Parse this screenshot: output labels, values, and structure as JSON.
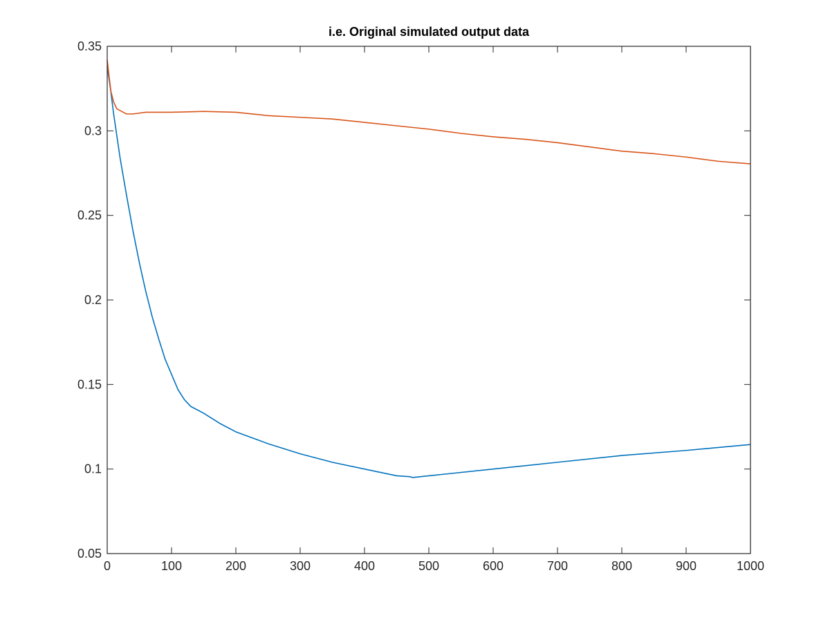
{
  "chart_data": {
    "type": "line",
    "title": "i.e. Original simulated output data",
    "xlabel": "",
    "ylabel": "",
    "xlim": [
      0,
      1000
    ],
    "ylim": [
      0.05,
      0.35
    ],
    "xticks": [
      0,
      100,
      200,
      300,
      400,
      500,
      600,
      700,
      800,
      900,
      1000
    ],
    "xtick_labels": [
      "0",
      "100",
      "200",
      "300",
      "400",
      "500",
      "600",
      "700",
      "800",
      "900",
      "1000"
    ],
    "yticks": [
      0.05,
      0.1,
      0.15,
      0.2,
      0.25,
      0.3,
      0.35
    ],
    "ytick_labels": [
      "0.05",
      "0.1",
      "0.15",
      "0.2",
      "0.25",
      "0.3",
      "0.35"
    ],
    "grid": false,
    "legend": "none",
    "series": [
      {
        "color": "#0072BD",
        "x": [
          0,
          5,
          10,
          20,
          30,
          40,
          50,
          60,
          70,
          80,
          90,
          100,
          110,
          120,
          130,
          150,
          175,
          200,
          250,
          300,
          350,
          400,
          450,
          470,
          475,
          500,
          600,
          700,
          800,
          900,
          1000
        ],
        "y": [
          0.338,
          0.325,
          0.31,
          0.284,
          0.262,
          0.241,
          0.222,
          0.205,
          0.19,
          0.177,
          0.165,
          0.156,
          0.147,
          0.141,
          0.137,
          0.133,
          0.127,
          0.122,
          0.115,
          0.109,
          0.104,
          0.1,
          0.096,
          0.0955,
          0.095,
          0.096,
          0.1,
          0.104,
          0.108,
          0.111,
          0.1145
        ]
      },
      {
        "color": "#D95319",
        "x": [
          0,
          3,
          6,
          10,
          15,
          20,
          25,
          30,
          40,
          60,
          100,
          150,
          200,
          250,
          300,
          350,
          400,
          450,
          500,
          550,
          600,
          650,
          700,
          750,
          800,
          850,
          900,
          950,
          1000
        ],
        "y": [
          0.342,
          0.332,
          0.323,
          0.317,
          0.313,
          0.312,
          0.311,
          0.31,
          0.31,
          0.311,
          0.311,
          0.3115,
          0.311,
          0.309,
          0.308,
          0.307,
          0.305,
          0.303,
          0.301,
          0.2985,
          0.2965,
          0.295,
          0.293,
          0.2905,
          0.288,
          0.2865,
          0.2845,
          0.282,
          0.2805
        ]
      }
    ]
  }
}
